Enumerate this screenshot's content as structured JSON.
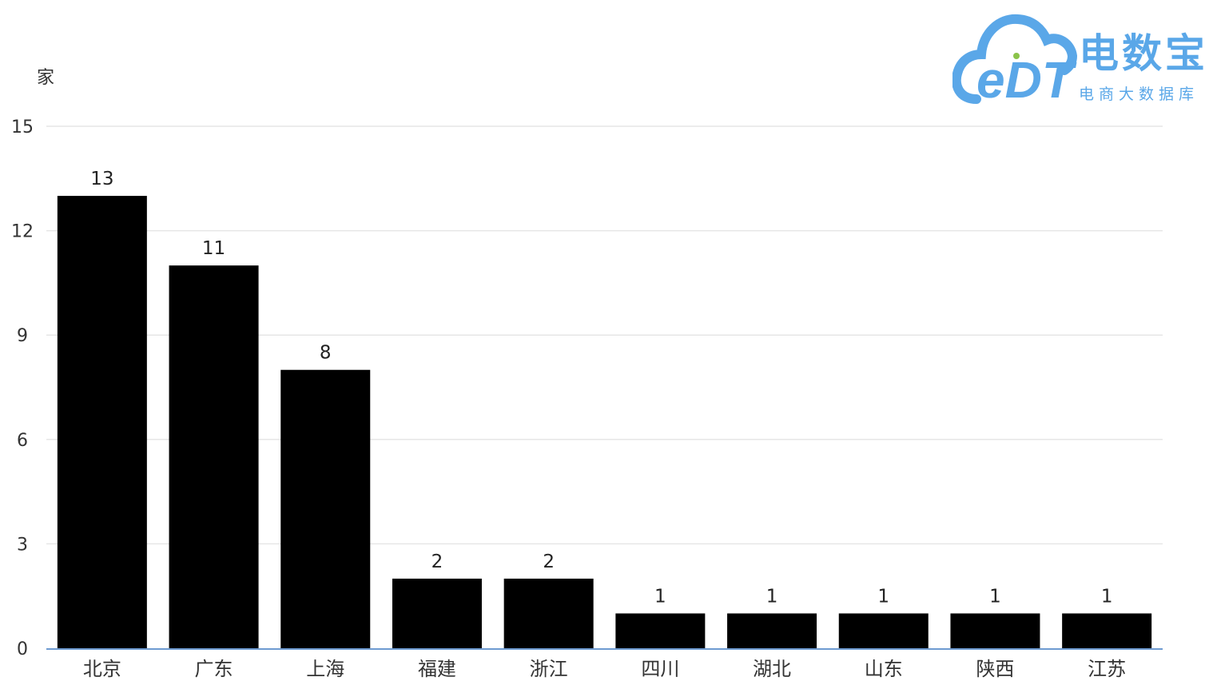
{
  "chart_data": {
    "type": "bar",
    "y_unit": "家",
    "categories": [
      "北京",
      "广东",
      "上海",
      "福建",
      "浙江",
      "四川",
      "湖北",
      "山东",
      "陕西",
      "江苏"
    ],
    "values": [
      13,
      11,
      8,
      2,
      2,
      1,
      1,
      1,
      1,
      1
    ],
    "ylim": [
      0,
      15
    ],
    "yticks": [
      0,
      3,
      6,
      9,
      12,
      15
    ],
    "grid": true,
    "bar_color": "#000000",
    "grid_color": "#e6e6e6",
    "axis_color": "#6e9bd1",
    "data_labels": true
  },
  "logo": {
    "mark": "eDT",
    "name": "电数宝",
    "tagline": "电商大数据库",
    "color": "#5aa7e8"
  }
}
